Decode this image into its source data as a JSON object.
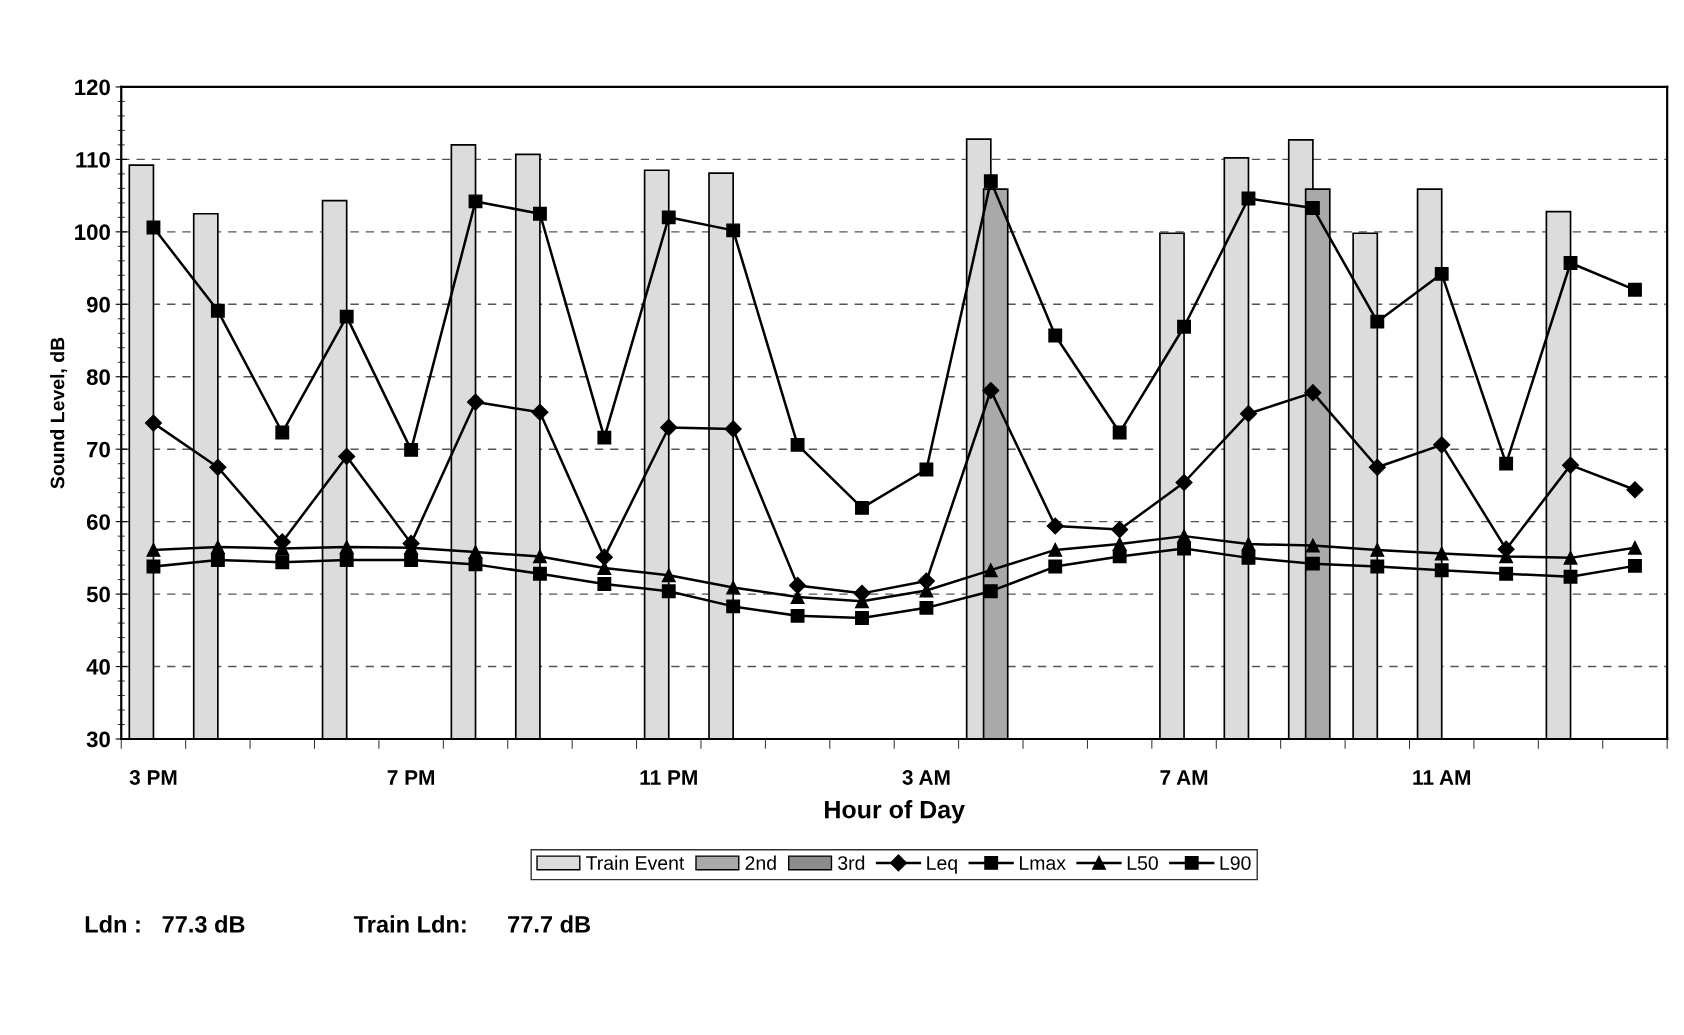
{
  "chart_data": {
    "type": "line",
    "xlabel": "Hour of Day",
    "ylabel": "Sound Level, dB",
    "categories": [
      "3 PM",
      null,
      null,
      null,
      "7 PM",
      null,
      null,
      null,
      "11 PM",
      null,
      null,
      null,
      "3 AM",
      null,
      null,
      null,
      "7 AM",
      null,
      null,
      null,
      "11 AM",
      null,
      null,
      null
    ],
    "ylim": [
      30,
      120
    ],
    "yticks": [
      30,
      40,
      50,
      60,
      70,
      80,
      90,
      100,
      110,
      120
    ],
    "grid": "y",
    "legend": "bottom",
    "series": [
      {
        "name": "Train Event",
        "type": "bar",
        "color": "#dcdcdc",
        "values": [
          109.2,
          102.5,
          null,
          104.3,
          null,
          112.0,
          110.7,
          null,
          108.5,
          108.1,
          null,
          null,
          null,
          112.8,
          null,
          null,
          99.8,
          110.2,
          112.7,
          99.8,
          105.9,
          null,
          102.8,
          null
        ]
      },
      {
        "name": "2nd",
        "type": "bar",
        "color": "#a9a9a9",
        "values": [
          null,
          null,
          null,
          null,
          null,
          null,
          null,
          null,
          null,
          null,
          null,
          null,
          null,
          105.9,
          null,
          null,
          null,
          null,
          105.9,
          null,
          null,
          null,
          null,
          null
        ]
      },
      {
        "name": "3rd",
        "type": "bar",
        "color": "#8c8c8c",
        "values": [
          null,
          null,
          null,
          null,
          null,
          null,
          null,
          null,
          null,
          null,
          null,
          null,
          null,
          null,
          null,
          null,
          null,
          null,
          null,
          null,
          null,
          null,
          null,
          null
        ]
      },
      {
        "name": "Leq",
        "color": "#000000",
        "marker": "diamond",
        "values": [
          73.6,
          67.5,
          57.2,
          69.0,
          57.0,
          76.5,
          75.1,
          55.1,
          73.0,
          72.8,
          51.2,
          50.1,
          51.8,
          78.1,
          59.4,
          58.9,
          65.4,
          74.9,
          77.8,
          67.5,
          70.6,
          56.2,
          67.8,
          64.4
        ]
      },
      {
        "name": "Lmax",
        "color": "#000000",
        "marker": "square",
        "values": [
          100.6,
          89.1,
          72.3,
          88.3,
          69.9,
          104.2,
          102.5,
          71.6,
          102.0,
          100.2,
          70.6,
          61.9,
          67.2,
          107.0,
          85.7,
          72.3,
          86.9,
          104.6,
          103.3,
          87.6,
          94.2,
          68.0,
          95.7,
          92.0
        ]
      },
      {
        "name": "L50",
        "color": "#000000",
        "marker": "triangle",
        "values": [
          56.1,
          56.5,
          56.3,
          56.5,
          56.4,
          55.8,
          55.2,
          53.6,
          52.6,
          50.9,
          49.6,
          49.0,
          50.5,
          53.3,
          56.1,
          56.9,
          58.0,
          56.9,
          56.7,
          56.1,
          55.6,
          55.2,
          55.0,
          56.4
        ]
      },
      {
        "name": "L90",
        "color": "#000000",
        "marker": "square",
        "values": [
          53.8,
          54.7,
          54.4,
          54.7,
          54.7,
          54.1,
          52.8,
          51.4,
          50.4,
          48.3,
          47.0,
          46.7,
          48.1,
          50.4,
          53.8,
          55.2,
          56.3,
          55.0,
          54.2,
          53.8,
          53.3,
          52.8,
          52.4,
          53.9
        ]
      }
    ],
    "annotations": [
      "Ldn :   77.3 dB",
      "Train Ldn:      77.7 dB"
    ]
  }
}
